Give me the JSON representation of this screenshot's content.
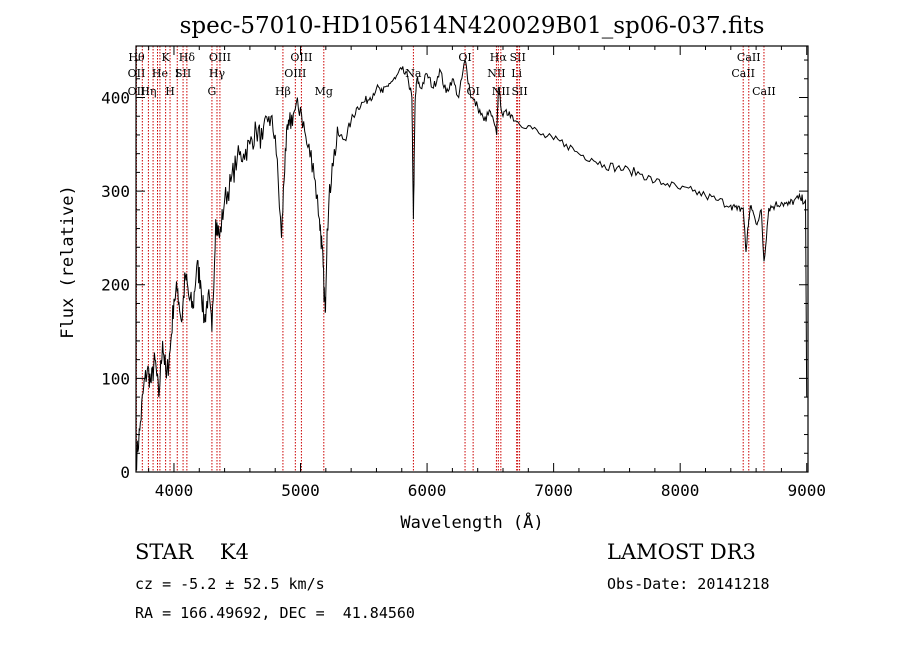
{
  "chart_data": {
    "type": "line",
    "title": "spec-57010-HD105614N420029B01_sp06-037.fits",
    "xlabel": "Wavelength (Å)",
    "ylabel": "Flux (relative)",
    "xlim": [
      3700,
      9010
    ],
    "ylim": [
      0,
      455
    ],
    "xticks": [
      4000,
      5000,
      6000,
      7000,
      8000,
      9000
    ],
    "yticks": [
      0,
      100,
      200,
      300,
      400
    ],
    "series": [
      {
        "name": "flux",
        "x": [
          3700,
          3730,
          3760,
          3790,
          3820,
          3850,
          3880,
          3910,
          3940,
          3970,
          4000,
          4030,
          4060,
          4090,
          4120,
          4150,
          4180,
          4210,
          4240,
          4270,
          4300,
          4330,
          4360,
          4400,
          4450,
          4500,
          4550,
          4600,
          4650,
          4700,
          4750,
          4800,
          4850,
          4880,
          4910,
          4950,
          5000,
          5050,
          5100,
          5150,
          5170,
          5184,
          5195,
          5210,
          5250,
          5300,
          5350,
          5400,
          5450,
          5500,
          5550,
          5600,
          5650,
          5700,
          5750,
          5800,
          5850,
          5880,
          5892,
          5905,
          5920,
          5950,
          6000,
          6050,
          6100,
          6150,
          6200,
          6250,
          6300,
          6330,
          6350,
          6400,
          6450,
          6500,
          6550,
          6563,
          6600,
          6650,
          6700,
          6800,
          6900,
          7000,
          7100,
          7200,
          7300,
          7400,
          7500,
          7600,
          7700,
          7800,
          7900,
          8000,
          8100,
          8200,
          8300,
          8400,
          8450,
          8498,
          8520,
          8542,
          8560,
          8600,
          8640,
          8662,
          8700,
          8750,
          8800,
          8850,
          8900,
          8950,
          8990,
          9000
        ],
        "values": [
          10,
          45,
          90,
          110,
          95,
          120,
          80,
          140,
          100,
          130,
          185,
          195,
          160,
          210,
          185,
          175,
          220,
          205,
          160,
          190,
          150,
          270,
          250,
          290,
          310,
          335,
          340,
          350,
          365,
          355,
          380,
          360,
          250,
          345,
          370,
          385,
          390,
          350,
          330,
          270,
          240,
          200,
          170,
          260,
          330,
          360,
          355,
          375,
          390,
          395,
          400,
          410,
          405,
          415,
          420,
          430,
          420,
          400,
          270,
          395,
          420,
          410,
          425,
          410,
          430,
          405,
          420,
          400,
          440,
          415,
          400,
          390,
          375,
          385,
          360,
          410,
          380,
          385,
          375,
          370,
          360,
          355,
          350,
          340,
          335,
          328,
          325,
          322,
          318,
          310,
          308,
          302,
          300,
          295,
          290,
          285,
          280,
          282,
          235,
          270,
          285,
          265,
          280,
          225,
          282,
          285,
          288,
          285,
          290,
          292,
          290,
          80
        ]
      }
    ],
    "lines": [
      {
        "x": 3704,
        "top": "Hθ",
        "mid": "OII",
        "bot": "OII"
      },
      {
        "x": 3750,
        "top": "",
        "mid": "",
        "bot": ""
      },
      {
        "x": 3798,
        "top": "",
        "mid": "",
        "bot": "Hη"
      },
      {
        "x": 3835,
        "top": "",
        "mid": "",
        "bot": ""
      },
      {
        "x": 3870,
        "top": "",
        "mid": "",
        "bot": ""
      },
      {
        "x": 3889,
        "top": "",
        "mid": "He",
        "bot": ""
      },
      {
        "x": 3934,
        "top": "K",
        "mid": "",
        "bot": ""
      },
      {
        "x": 3969,
        "top": "",
        "mid": "",
        "bot": "H"
      },
      {
        "x": 4026,
        "top": "",
        "mid": "I",
        "bot": ""
      },
      {
        "x": 4072,
        "top": "",
        "mid": "SII",
        "bot": ""
      },
      {
        "x": 4102,
        "top": "Hδ",
        "mid": "",
        "bot": ""
      },
      {
        "x": 4300,
        "top": "",
        "mid": "",
        "bot": "G"
      },
      {
        "x": 4340,
        "top": "",
        "mid": "Hγ",
        "bot": ""
      },
      {
        "x": 4363,
        "top": "OIII",
        "mid": "",
        "bot": ""
      },
      {
        "x": 4861,
        "top": "",
        "mid": "",
        "bot": "Hβ"
      },
      {
        "x": 4959,
        "top": "",
        "mid": "OIII",
        "bot": ""
      },
      {
        "x": 5007,
        "top": "OIII",
        "mid": "",
        "bot": ""
      },
      {
        "x": 5184,
        "top": "",
        "mid": "",
        "bot": "Mg"
      },
      {
        "x": 5892,
        "top": "",
        "mid": "Na",
        "bot": ""
      },
      {
        "x": 6300,
        "top": "OI",
        "mid": "",
        "bot": ""
      },
      {
        "x": 6364,
        "top": "",
        "mid": "",
        "bot": "OI"
      },
      {
        "x": 6548,
        "top": "",
        "mid": "NII",
        "bot": ""
      },
      {
        "x": 6563,
        "top": "Hα",
        "mid": "",
        "bot": ""
      },
      {
        "x": 6583,
        "top": "",
        "mid": "",
        "bot": "NII"
      },
      {
        "x": 6708,
        "top": "",
        "mid": "Li",
        "bot": ""
      },
      {
        "x": 6716,
        "top": "SII",
        "mid": "",
        "bot": ""
      },
      {
        "x": 6731,
        "top": "",
        "mid": "",
        "bot": "SII"
      },
      {
        "x": 8498,
        "top": "",
        "mid": "CaII",
        "bot": ""
      },
      {
        "x": 8542,
        "top": "CaII",
        "mid": "",
        "bot": ""
      },
      {
        "x": 8662,
        "top": "",
        "mid": "",
        "bot": "CaII"
      }
    ],
    "line_color": "#cc0000"
  },
  "info": {
    "object": "STAR    K4",
    "survey": "LAMOST DR3",
    "cz": "cz = -5.2 ± 52.5 km/s",
    "obs_date": "Obs-Date: 20141218",
    "coords": "RA = 166.49692, DEC =  41.84560"
  }
}
